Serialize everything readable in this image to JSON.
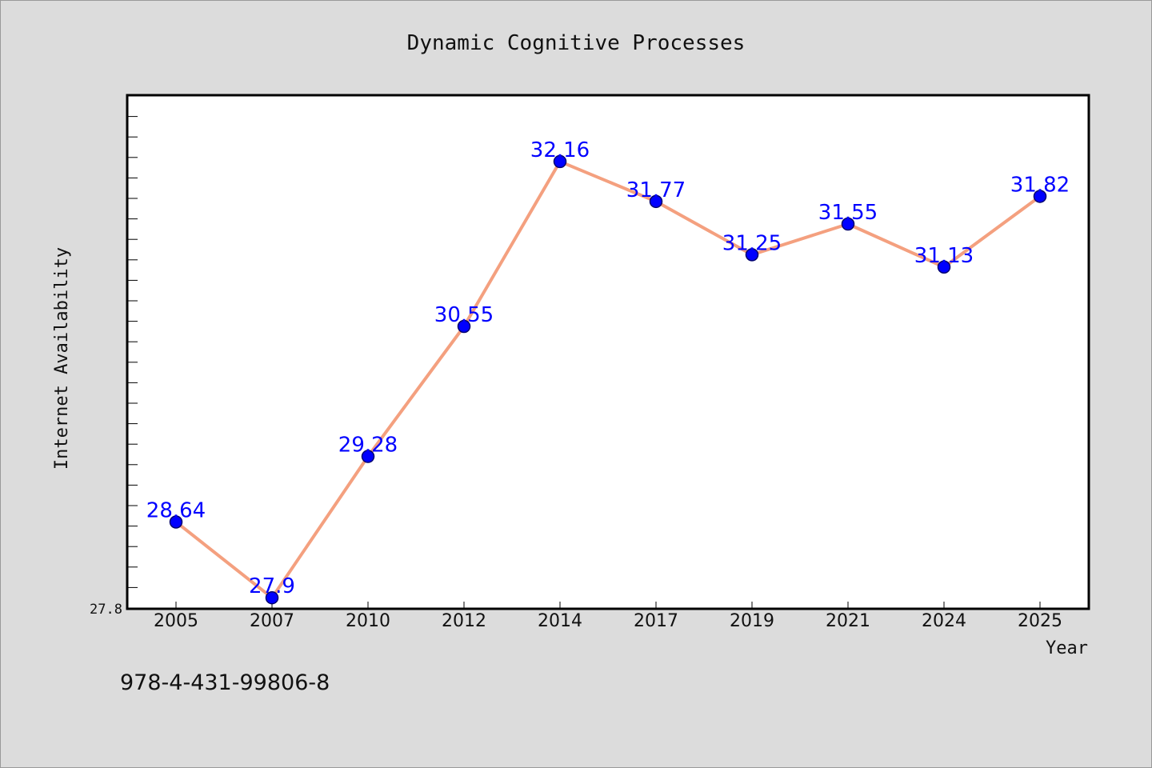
{
  "chart_data": {
    "type": "line",
    "title": "Dynamic Cognitive Processes",
    "xlabel": "Year",
    "ylabel": "Internet Availability",
    "categories": [
      "2005",
      "2007",
      "2010",
      "2012",
      "2014",
      "2017",
      "2019",
      "2021",
      "2024",
      "2025"
    ],
    "series": [
      {
        "values": [
          28.64,
          27.9,
          29.28,
          30.55,
          32.16,
          31.77,
          31.25,
          31.55,
          31.13,
          31.82
        ],
        "labels": [
          "28.64",
          "27.9",
          "29.28",
          "30.55",
          "32.16",
          "31.77",
          "31.25",
          "31.55",
          "31.13",
          "31.82"
        ]
      }
    ],
    "ylim": [
      27.8,
      32.8
    ],
    "y_tick_labels": [
      "27.8"
    ],
    "grid": false,
    "legend": "none",
    "colors": {
      "line": "#f4a07f",
      "marker": "#0000ff",
      "marker_edge": "#00006e",
      "labels": "#0000ff",
      "background": "#dcdcdc",
      "plot_background": "#ffffff"
    }
  },
  "footer": {
    "text": "978-4-431-99806-8"
  }
}
